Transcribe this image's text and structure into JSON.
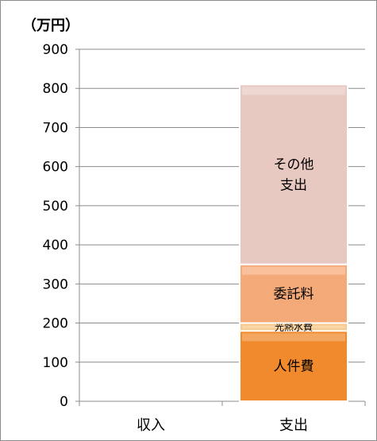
{
  "chart_data": {
    "type": "bar",
    "stacked": true,
    "unit_label": "（万円）",
    "categories": [
      "収入",
      "支出"
    ],
    "ylim": [
      0,
      900
    ],
    "yticks": [
      0,
      100,
      200,
      300,
      400,
      500,
      600,
      700,
      800,
      900
    ],
    "grid": true,
    "series": [
      {
        "name": "人件費",
        "values": [
          0,
          180
        ],
        "color": "#f08a2c"
      },
      {
        "name": "光熱水費",
        "values": [
          0,
          20
        ],
        "color": "#f6c88a"
      },
      {
        "name": "委託料",
        "values": [
          0,
          150
        ],
        "color": "#f4aa78"
      },
      {
        "name": "その他支出",
        "label_lines": [
          "その他",
          "支出"
        ],
        "values": [
          0,
          460
        ],
        "color": "#e8c9c2"
      }
    ]
  }
}
